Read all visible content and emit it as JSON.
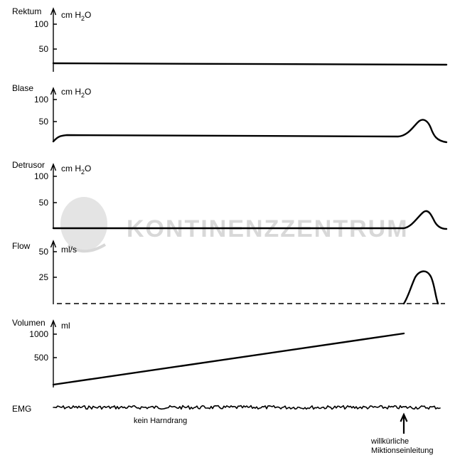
{
  "watermark": "KONTINENZZENTRUM",
  "panels": [
    {
      "label": "Rektum",
      "unit": "cm H",
      "unit_sub": "2",
      "unit_tail": "O",
      "ticks": [
        {
          "v": 100,
          "t": "100"
        },
        {
          "v": 50,
          "t": "50"
        }
      ]
    },
    {
      "label": "Blase",
      "unit": "cm H",
      "unit_sub": "2",
      "unit_tail": "O",
      "ticks": [
        {
          "v": 100,
          "t": "100"
        },
        {
          "v": 50,
          "t": "50"
        }
      ]
    },
    {
      "label": "Detrusor",
      "unit": "cm H",
      "unit_sub": "2",
      "unit_tail": "O",
      "ticks": [
        {
          "v": 100,
          "t": "100"
        },
        {
          "v": 50,
          "t": "50"
        }
      ]
    },
    {
      "label": "Flow",
      "unit": "ml/s",
      "unit_sub": "",
      "unit_tail": "",
      "ticks": [
        {
          "v": 50,
          "t": "50"
        },
        {
          "v": 25,
          "t": "25"
        }
      ]
    },
    {
      "label": "Volumen",
      "unit": "ml",
      "unit_sub": "",
      "unit_tail": "",
      "ticks": [
        {
          "v": 1000,
          "t": "1000"
        },
        {
          "v": 500,
          "t": "500"
        }
      ]
    }
  ],
  "emg_label": "EMG",
  "note_left": "kein Harndrang",
  "note_right_line1": "willkürliche",
  "note_right_line2": "Miktionseinleitung"
}
